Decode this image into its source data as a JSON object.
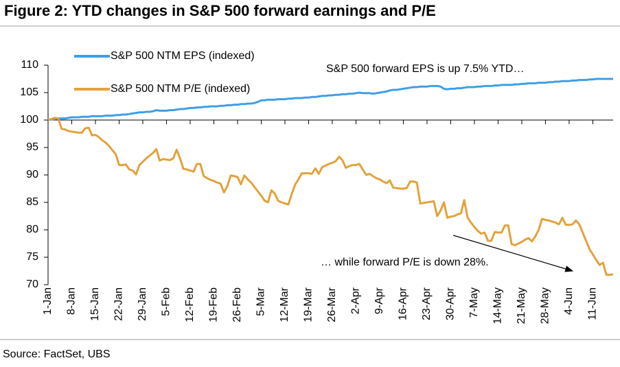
{
  "chart_data": {
    "type": "line",
    "title": "Figure 2: YTD changes in S&P 500 forward earnings and P/E",
    "source": "Source: FactSet, UBS",
    "annotations": [
      "S&P 500 forward EPS is up 7.5% YTD…",
      "… while forward P/E is down 28%."
    ],
    "categories": [
      "1-Jan",
      null,
      null,
      null,
      null,
      null,
      null,
      "8-Jan",
      null,
      null,
      null,
      null,
      null,
      null,
      "15-Jan",
      null,
      null,
      null,
      null,
      null,
      null,
      "22-Jan",
      null,
      null,
      null,
      null,
      null,
      null,
      "29-Jan",
      null,
      null,
      null,
      null,
      null,
      null,
      "5-Feb",
      null,
      null,
      null,
      null,
      null,
      null,
      "12-Feb",
      null,
      null,
      null,
      null,
      null,
      null,
      "19-Feb",
      null,
      null,
      null,
      null,
      null,
      null,
      "26-Feb",
      null,
      null,
      null,
      null,
      null,
      null,
      "5-Mar",
      null,
      null,
      null,
      null,
      null,
      null,
      "12-Mar",
      null,
      null,
      null,
      null,
      null,
      null,
      "19-Mar",
      null,
      null,
      null,
      null,
      null,
      null,
      "26-Mar",
      null,
      null,
      null,
      null,
      null,
      null,
      "2-Apr",
      null,
      null,
      null,
      null,
      null,
      null,
      "9-Apr",
      null,
      null,
      null,
      null,
      null,
      null,
      "16-Apr",
      null,
      null,
      null,
      null,
      null,
      null,
      "23-Apr",
      null,
      null,
      null,
      null,
      null,
      null,
      "30-Apr",
      null,
      null,
      null,
      null,
      null,
      null,
      "7-May",
      null,
      null,
      null,
      null,
      null,
      null,
      "14-May",
      null,
      null,
      null,
      null,
      null,
      null,
      "21-May",
      null,
      null,
      null,
      null,
      null,
      null,
      "28-May",
      null,
      null,
      null,
      null,
      null,
      null,
      "4-Jun",
      null,
      null,
      null,
      null,
      null,
      null,
      "11-Jun",
      null,
      null,
      null,
      null,
      null,
      null
    ],
    "series": [
      {
        "name": "S&P 500 NTM EPS (indexed)",
        "color": "#3d9fe6",
        "values": [
          100,
          100.1,
          100.2,
          100.3,
          100.3,
          100.3,
          100.4,
          100.5,
          100.5,
          100.5,
          100.6,
          100.6,
          100.6,
          100.7,
          100.7,
          100.7,
          100.7,
          100.8,
          100.8,
          100.8,
          100.9,
          100.9,
          101.0,
          101.0,
          101.1,
          101.2,
          101.3,
          101.4,
          101.4,
          101.5,
          101.5,
          101.6,
          101.8,
          101.7,
          101.7,
          101.7,
          101.8,
          101.8,
          101.9,
          102.0,
          102.0,
          102.1,
          102.2,
          102.2,
          102.3,
          102.3,
          102.4,
          102.4,
          102.5,
          102.5,
          102.5,
          102.6,
          102.6,
          102.7,
          102.7,
          102.8,
          102.8,
          102.9,
          102.9,
          103.0,
          103.0,
          103.1,
          103.3,
          103.6,
          103.6,
          103.7,
          103.7,
          103.7,
          103.8,
          103.8,
          103.8,
          103.9,
          103.9,
          104.0,
          104.0,
          104.0,
          104.1,
          104.1,
          104.2,
          104.2,
          104.3,
          104.4,
          104.4,
          104.5,
          104.5,
          104.6,
          104.6,
          104.7,
          104.7,
          104.8,
          104.8,
          104.9,
          105.0,
          104.9,
          104.9,
          104.9,
          104.8,
          104.9,
          105.0,
          105.1,
          105.2,
          105.4,
          105.5,
          105.5,
          105.6,
          105.7,
          105.8,
          105.9,
          106.0,
          106.0,
          106.1,
          106.1,
          106.1,
          106.2,
          106.2,
          106.2,
          106.1,
          105.7,
          105.6,
          105.7,
          105.7,
          105.8,
          105.8,
          105.9,
          106.0,
          106.0,
          106.0,
          106.1,
          106.1,
          106.2,
          106.2,
          106.2,
          106.3,
          106.3,
          106.4,
          106.4,
          106.4,
          106.4,
          106.5,
          106.5,
          106.6,
          106.6,
          106.7,
          106.7,
          106.7,
          106.8,
          106.8,
          106.8,
          106.9,
          106.9,
          107.0,
          107.0,
          107.1,
          107.1,
          107.1,
          107.2,
          107.2,
          107.3,
          107.3,
          107.3,
          107.4,
          107.4,
          107.5,
          107.5,
          107.5,
          107.5,
          107.5,
          107.5
        ]
      },
      {
        "name": "S&P 500 NTM P/E (indexed)",
        "color": "#e2a23a",
        "values": [
          100,
          100.2,
          100.4,
          100.3,
          98.4,
          98.3,
          98.0,
          97.9,
          97.8,
          97.7,
          97.7,
          98.5,
          98.6,
          97.2,
          97.3,
          96.9,
          96.3,
          95.9,
          95.3,
          94.5,
          93.8,
          91.8,
          91.8,
          91.9,
          91.0,
          90.8,
          90.1,
          91.8,
          92.4,
          93.0,
          93.5,
          94.0,
          94.7,
          92.6,
          92.9,
          92.8,
          92.7,
          93.0,
          94.6,
          93.0,
          91.1,
          91.0,
          90.8,
          90.6,
          92.0,
          92.0,
          89.8,
          89.4,
          89.1,
          88.9,
          88.6,
          88.4,
          86.8,
          88.0,
          89.9,
          89.8,
          89.6,
          88.3,
          89.9,
          89.2,
          88.6,
          87.8,
          87.0,
          86.2,
          85.3,
          85.0,
          87.2,
          86.6,
          85.3,
          85.0,
          84.8,
          84.6,
          86.5,
          88.2,
          89.2,
          90.3,
          90.3,
          90.3,
          90.2,
          91.2,
          90.2,
          91.4,
          91.7,
          92.0,
          92.2,
          92.5,
          93.3,
          92.7,
          91.3,
          91.6,
          91.8,
          91.8,
          92.0,
          91.0,
          90.0,
          90.2,
          89.8,
          89.4,
          89.2,
          88.8,
          88.5,
          89.0,
          87.7,
          87.6,
          87.5,
          87.5,
          87.6,
          88.8,
          88.8,
          88.6,
          84.8,
          84.9,
          85.0,
          85.1,
          85.2,
          82.5,
          83.5,
          85.0,
          82.2,
          82.4,
          82.5,
          82.8,
          83.0,
          85.4,
          82.2,
          81.3,
          80.5,
          79.8,
          79.3,
          79.5,
          78.0,
          78.0,
          79.6,
          79.5,
          79.5,
          80.8,
          80.8,
          77.4,
          77.2,
          77.5,
          77.8,
          78.2,
          78.5,
          77.9,
          78.8,
          80.0,
          82.0,
          81.8,
          81.7,
          81.5,
          81.3,
          81.0,
          82.2,
          80.9,
          80.9,
          81.0,
          81.7,
          81.0,
          79.5,
          78.0,
          76.5,
          75.5,
          74.5,
          73.6,
          74.0,
          71.8,
          71.8,
          71.9
        ]
      }
    ],
    "ylim": [
      70,
      110
    ],
    "yticks": [
      110,
      105,
      100,
      95,
      90,
      85,
      80,
      75,
      70
    ],
    "xaxis_crosses": 100
  }
}
